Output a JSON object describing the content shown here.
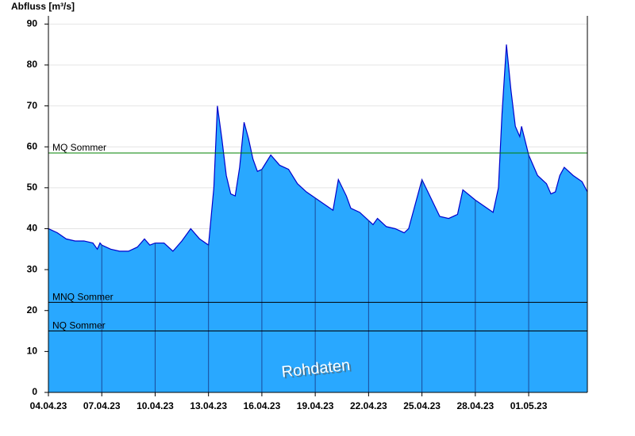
{
  "chart_data": {
    "type": "area",
    "title": "Abfluss [m³/s]",
    "watermark": "Rohdaten",
    "color": "#29a8ff",
    "line_color": "#0000cc",
    "xlim": [
      0,
      30.3
    ],
    "xticks": [
      {
        "value": 0,
        "label": "04.04.23"
      },
      {
        "value": 3,
        "label": "07.04.23"
      },
      {
        "value": 6,
        "label": "10.04.23"
      },
      {
        "value": 9,
        "label": "13.04.23"
      },
      {
        "value": 12,
        "label": "16.04.23"
      },
      {
        "value": 15,
        "label": "19.04.23"
      },
      {
        "value": 18,
        "label": "22.04.23"
      },
      {
        "value": 21,
        "label": "25.04.23"
      },
      {
        "value": 24,
        "label": "28.04.23"
      },
      {
        "value": 27,
        "label": "01.05.23"
      }
    ],
    "ylim": [
      0,
      92
    ],
    "yticks": [
      0,
      10,
      20,
      30,
      40,
      50,
      60,
      70,
      80,
      90
    ],
    "grid": true,
    "x": [
      0,
      0.5,
      1,
      1.5,
      2,
      2.5,
      2.75,
      2.9,
      3,
      3.5,
      4,
      4.5,
      5,
      5.4,
      5.7,
      6,
      6.5,
      7,
      7.5,
      8,
      8.5,
      9,
      9.3,
      9.5,
      9.75,
      10,
      10.25,
      10.5,
      10.75,
      11,
      11.25,
      11.5,
      11.75,
      12,
      12.5,
      13,
      13.5,
      14,
      14.5,
      15,
      15.5,
      16,
      16.3,
      16.75,
      17,
      17.5,
      18,
      18.25,
      18.5,
      19,
      19.5,
      20,
      20.25,
      20.75,
      21,
      21.5,
      22,
      22.5,
      23,
      23.3,
      24,
      24.5,
      25,
      25.3,
      25.5,
      25.75,
      26,
      26.25,
      26.5,
      26.6,
      27,
      27.5,
      28,
      28.25,
      28.5,
      28.75,
      29,
      29.5,
      30,
      30.3
    ],
    "values": [
      40,
      39,
      37.5,
      37,
      37,
      36.5,
      35,
      36.5,
      36,
      35,
      34.5,
      34.5,
      35.5,
      37.5,
      36,
      36.5,
      36.5,
      34.5,
      37,
      40,
      37.5,
      36,
      50,
      70,
      62,
      53,
      48.5,
      48,
      55,
      66,
      62,
      57,
      54,
      54.5,
      58,
      55.5,
      54.5,
      51,
      49,
      47.5,
      46,
      44.5,
      52,
      48,
      45,
      44,
      42,
      41,
      42.5,
      40.5,
      40,
      39,
      40,
      48,
      52,
      47.5,
      43,
      42.5,
      43.5,
      49.5,
      47,
      45.5,
      44,
      50,
      68,
      85,
      74,
      65,
      62.5,
      65,
      58,
      53,
      51,
      48.5,
      49,
      53,
      55,
      53,
      51.5,
      49
    ],
    "reference_lines": [
      {
        "label": "MQ Sommer",
        "value": 58.5,
        "color": "#008000"
      },
      {
        "label": "MNQ Sommer",
        "value": 22,
        "color": "#000000"
      },
      {
        "label": "NQ Sommer",
        "value": 15,
        "color": "#000000"
      }
    ]
  }
}
